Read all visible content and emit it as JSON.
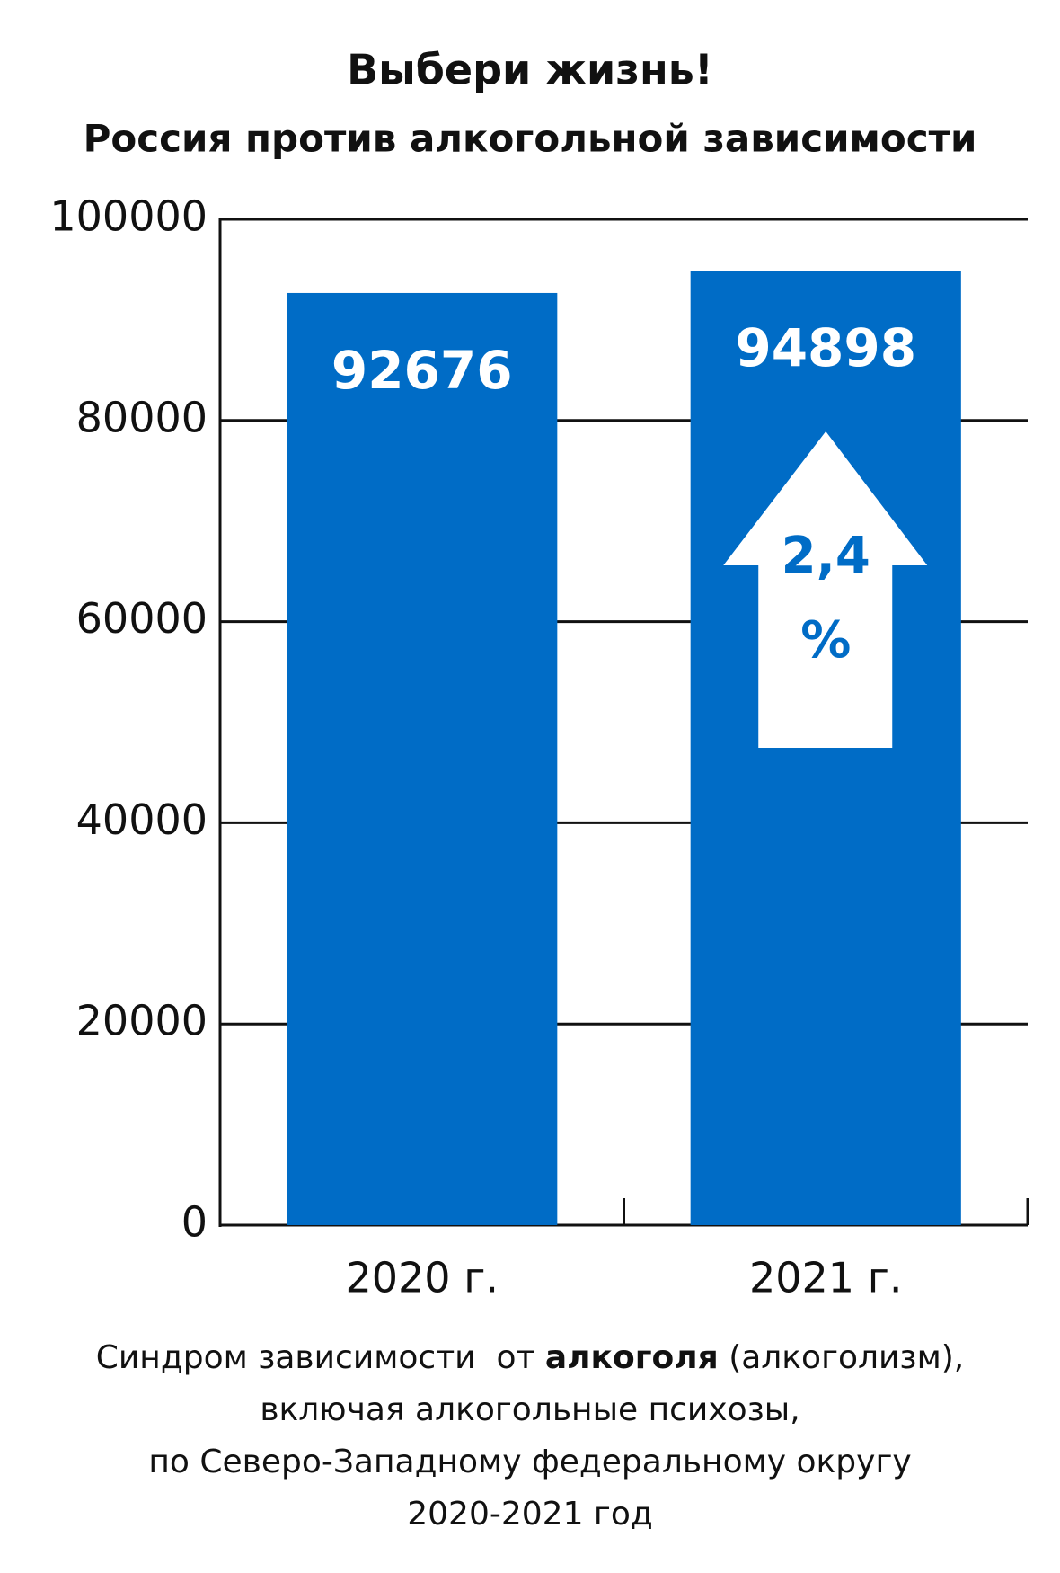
{
  "chart_data": {
    "type": "bar",
    "title": "Выбери жизнь!",
    "subtitle": "Россия против алкогольной зависимости",
    "categories": [
      "2020 г.",
      "2021 г."
    ],
    "values": [
      92676,
      94898
    ],
    "color": "#006cc6",
    "ylim": [
      0,
      100000
    ],
    "yticks": [
      0,
      20000,
      40000,
      60000,
      80000,
      100000
    ],
    "grid": true,
    "annotation": [
      "2,4",
      "%"
    ],
    "footnote": [
      [
        "Синдром зависимости  от ",
        "алкоголя",
        " (алкоголизм),"
      ],
      [
        "включая алкогольные психозы,"
      ],
      [
        "по Северо-Западному федеральному округу"
      ],
      [
        "2020-2021 год"
      ]
    ]
  }
}
